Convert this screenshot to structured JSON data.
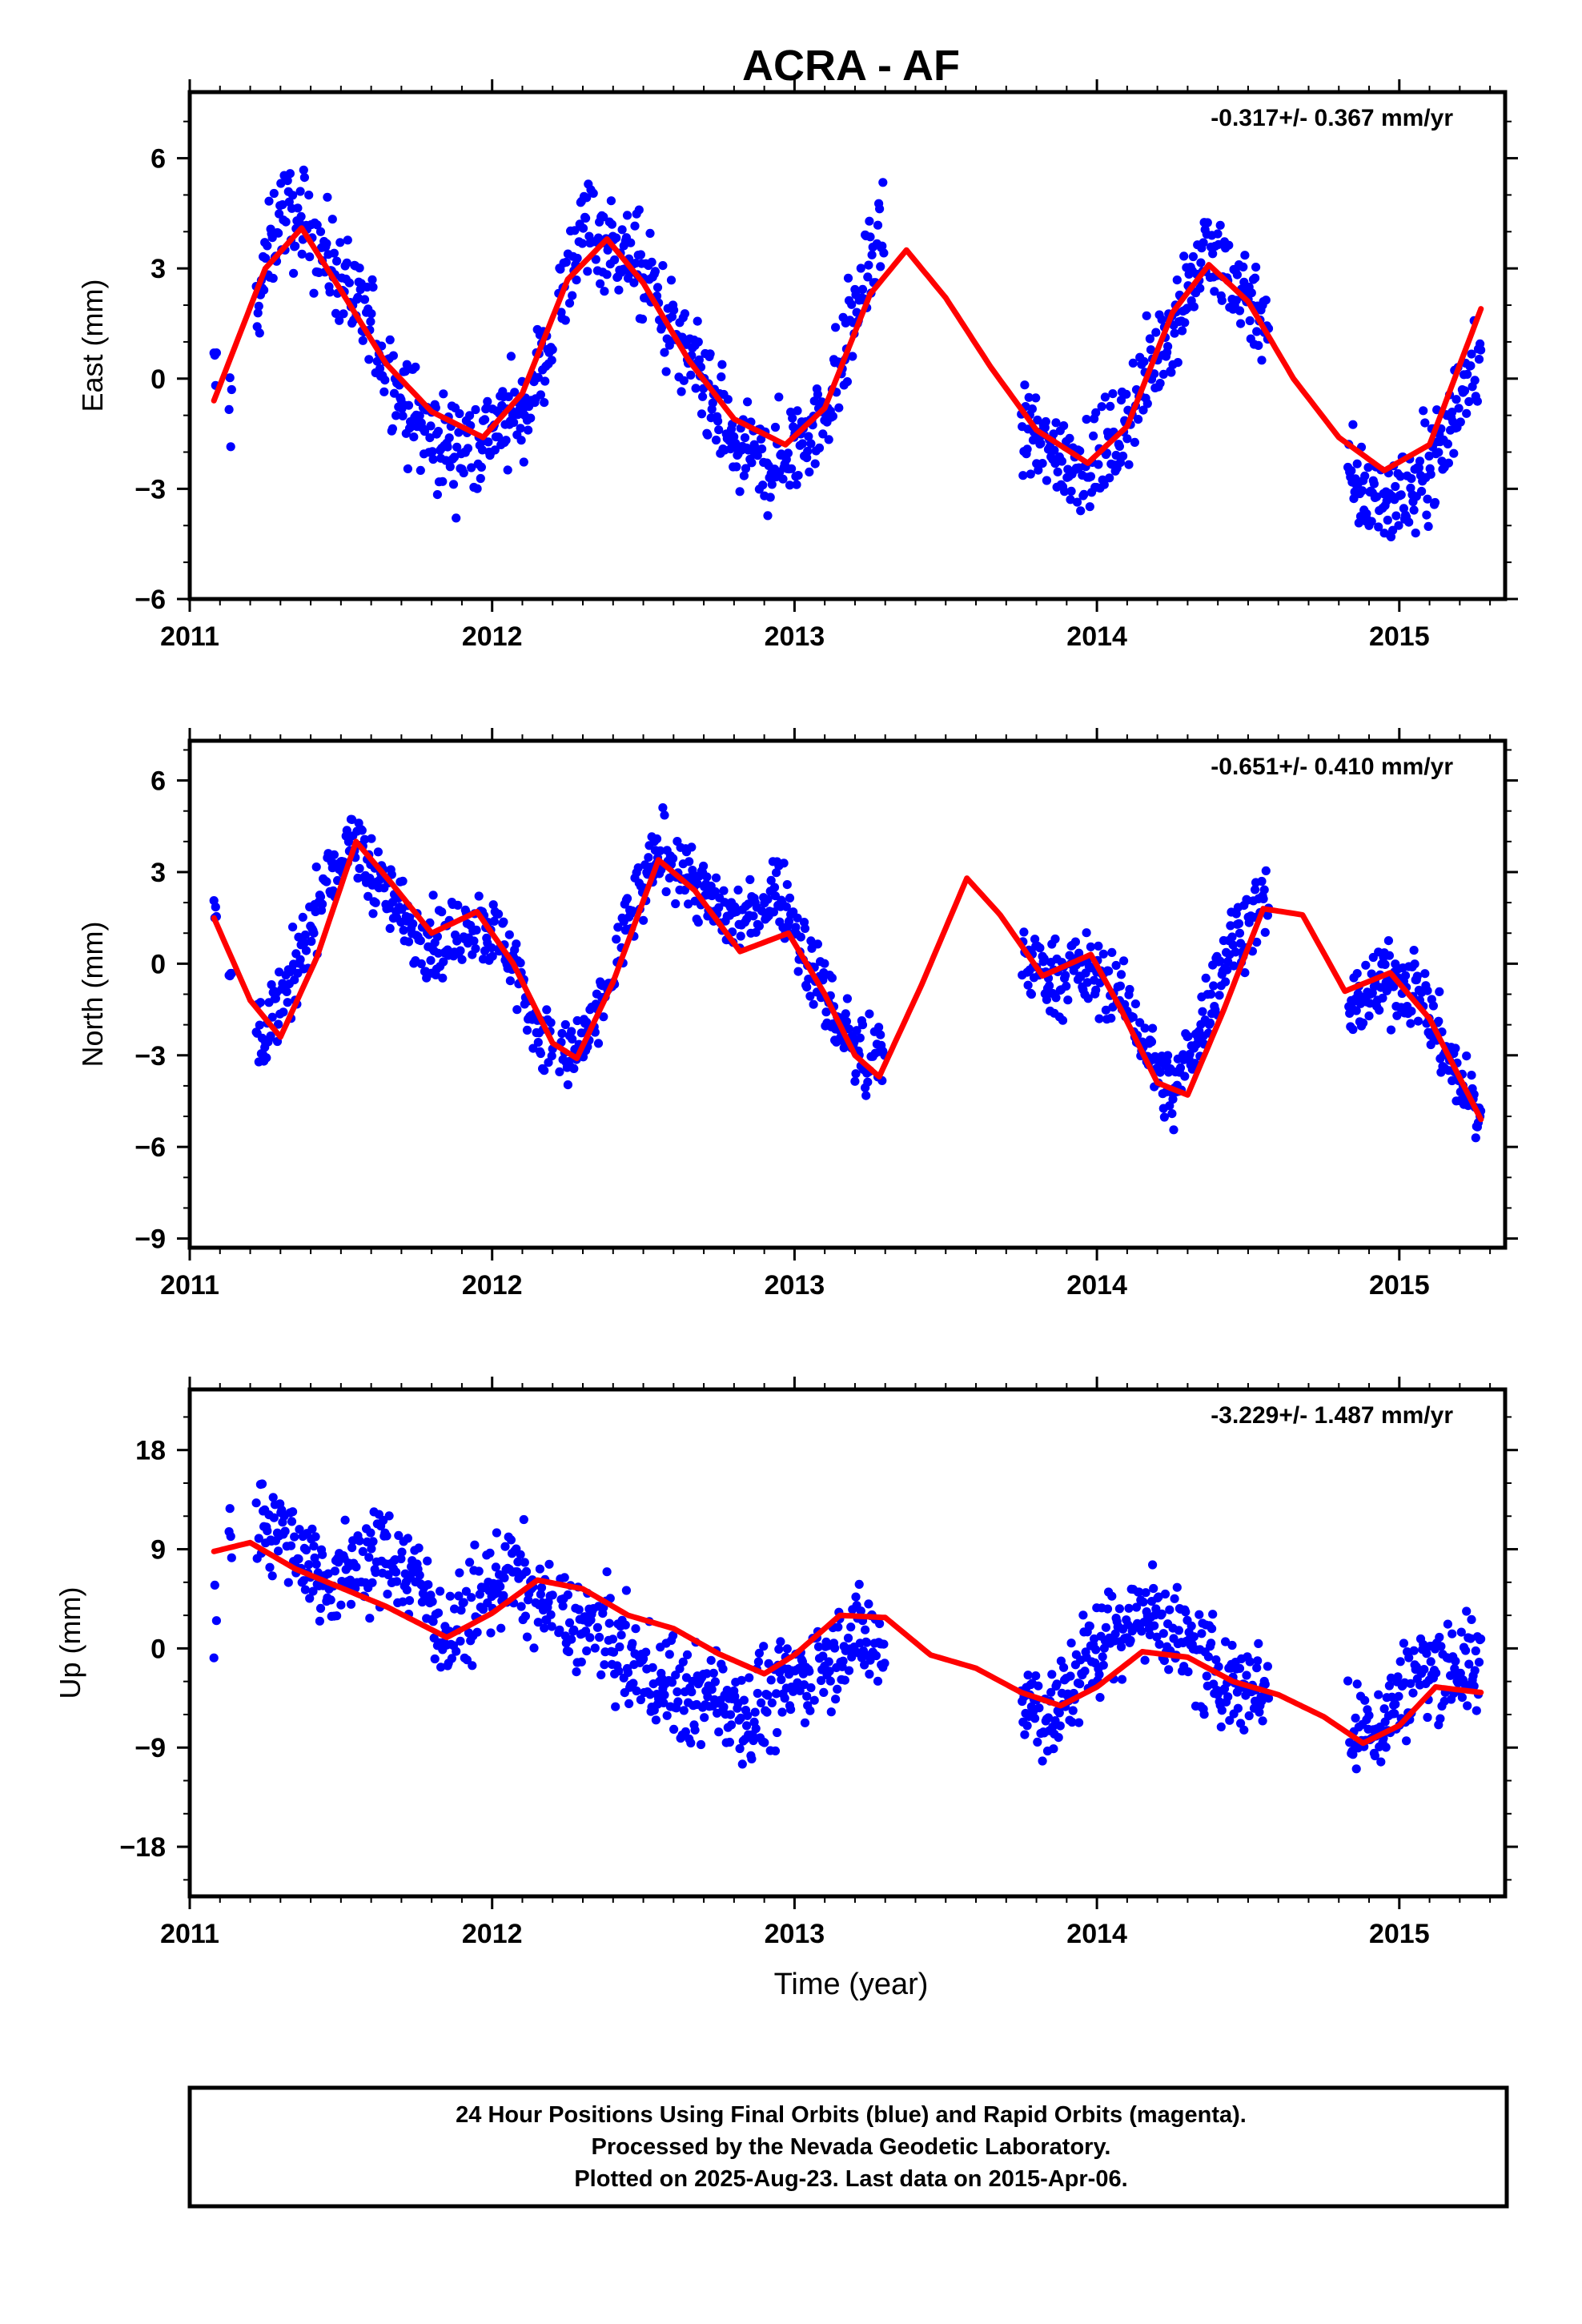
{
  "figure": {
    "title": "ACRA - AF",
    "xlabel": "Time (year)",
    "footer": [
      "24 Hour Positions Using Final Orbits (blue) and Rapid Orbits (magenta).",
      "Processed by the Nevada Geodetic Laboratory.",
      "Plotted on 2025-Aug-23. Last data on 2015-Apr-06."
    ]
  },
  "colors": {
    "points": "#0000ff",
    "fit": "#ff0000",
    "frame": "#000000"
  },
  "chart_data": [
    {
      "type": "scatter",
      "panel": "east",
      "ylabel": "East (mm)",
      "rate_label": "-0.317+/- 0.367 mm/yr",
      "xlim": [
        2011.0,
        2015.35
      ],
      "ylim": [
        -6,
        7.8
      ],
      "xticks": [
        2011,
        2012,
        2013,
        2014,
        2015
      ],
      "xtick_labels": [
        "2011",
        "2012",
        "2013",
        "2014",
        "2015"
      ],
      "yticks": [
        -6,
        -3,
        0,
        3,
        6
      ],
      "ytick_labels": [
        "−6",
        "−3",
        "0",
        "3",
        "6"
      ],
      "series": [
        {
          "kind": "points",
          "segments": [
            [
              2011.08,
              2011.09
            ],
            [
              2011.13,
              2011.14
            ],
            [
              2011.22,
              2012.2
            ],
            [
              2012.22,
              2013.3
            ],
            [
              2013.75,
              2014.57
            ],
            [
              2014.83,
              2015.27
            ]
          ],
          "x": [
            2011.08,
            2011.14,
            2011.3,
            2011.4,
            2011.5,
            2011.6,
            2011.7,
            2011.8,
            2011.9,
            2012.0,
            2012.1,
            2012.2,
            2012.3,
            2012.4,
            2012.5,
            2012.6,
            2012.7,
            2012.8,
            2012.9,
            2013.0,
            2013.1,
            2013.2,
            2013.3,
            2013.75,
            2013.85,
            2013.95,
            2014.05,
            2014.15,
            2014.25,
            2014.35,
            2014.45,
            2014.55,
            2014.85,
            2014.95,
            2015.05,
            2015.15,
            2015.25
          ],
          "y": [
            0.0,
            -0.8,
            4.6,
            4.0,
            2.8,
            1.2,
            -0.5,
            -1.6,
            -1.9,
            -1.4,
            -1.0,
            1.2,
            4.3,
            3.6,
            2.9,
            1.2,
            -0.4,
            -1.9,
            -2.4,
            -1.9,
            -0.9,
            1.8,
            4.2,
            -1.4,
            -2.0,
            -2.3,
            -1.9,
            -0.3,
            1.6,
            3.3,
            2.8,
            1.8,
            -3.0,
            -3.3,
            -3.0,
            -1.6,
            0.7
          ],
          "noise": 1.2
        },
        {
          "kind": "line",
          "x": [
            2011.08,
            2011.25,
            2011.37,
            2011.5,
            2011.65,
            2011.8,
            2011.97,
            2012.1,
            2012.25,
            2012.38,
            2012.5,
            2012.65,
            2012.8,
            2012.97,
            2013.1,
            2013.25,
            2013.37,
            2013.5,
            2013.65,
            2013.8,
            2013.97,
            2014.1,
            2014.25,
            2014.37,
            2014.5,
            2014.65,
            2014.8,
            2014.95,
            2015.1,
            2015.27
          ],
          "y": [
            -0.6,
            3.0,
            4.1,
            2.4,
            0.4,
            -0.9,
            -1.6,
            -0.4,
            2.7,
            3.8,
            2.6,
            0.5,
            -1.1,
            -1.8,
            -0.8,
            2.3,
            3.5,
            2.2,
            0.3,
            -1.4,
            -2.3,
            -1.3,
            1.8,
            3.1,
            2.1,
            0.0,
            -1.6,
            -2.5,
            -1.8,
            1.9
          ]
        }
      ]
    },
    {
      "type": "scatter",
      "panel": "north",
      "ylabel": "North (mm)",
      "rate_label": "-0.651+/- 0.410 mm/yr",
      "xlim": [
        2011.0,
        2015.35
      ],
      "ylim": [
        -9.3,
        7.3
      ],
      "xticks": [
        2011,
        2012,
        2013,
        2014,
        2015
      ],
      "xtick_labels": [
        "2011",
        "2012",
        "2013",
        "2014",
        "2015"
      ],
      "yticks": [
        -9,
        -6,
        -3,
        0,
        3,
        6
      ],
      "ytick_labels": [
        "−9",
        "−6",
        "−3",
        "0",
        "3",
        "6"
      ],
      "series": [
        {
          "kind": "points",
          "segments": [
            [
              2011.08,
              2011.09
            ],
            [
              2011.13,
              2011.14
            ],
            [
              2011.22,
              2012.2
            ],
            [
              2012.22,
              2013.3
            ],
            [
              2013.75,
              2014.57
            ],
            [
              2014.83,
              2015.27
            ]
          ],
          "x": [
            2011.08,
            2011.14,
            2011.25,
            2011.35,
            2011.45,
            2011.55,
            2011.65,
            2011.75,
            2011.85,
            2011.95,
            2012.05,
            2012.15,
            2012.25,
            2012.35,
            2012.45,
            2012.55,
            2012.65,
            2012.75,
            2012.85,
            2012.95,
            2013.05,
            2013.15,
            2013.25,
            2013.75,
            2013.85,
            2013.95,
            2014.05,
            2014.15,
            2014.25,
            2014.35,
            2014.45,
            2014.55,
            2014.85,
            2014.95,
            2015.05,
            2015.15,
            2015.25
          ],
          "y": [
            1.5,
            -0.6,
            -2.2,
            -0.4,
            2.8,
            3.9,
            2.3,
            1.0,
            0.6,
            1.4,
            0.6,
            -2.2,
            -3.3,
            -1.8,
            1.3,
            3.6,
            3.0,
            1.6,
            1.4,
            2.6,
            0.0,
            -2.0,
            -3.4,
            0.2,
            -0.4,
            -0.2,
            -0.6,
            -2.4,
            -4.4,
            -1.8,
            0.9,
            2.0,
            -1.4,
            -0.5,
            -0.7,
            -2.8,
            -4.8
          ],
          "noise": 1.1
        },
        {
          "kind": "line",
          "x": [
            2011.08,
            2011.2,
            2011.3,
            2011.42,
            2011.55,
            2011.67,
            2011.8,
            2011.95,
            2012.07,
            2012.2,
            2012.28,
            2012.4,
            2012.55,
            2012.67,
            2012.82,
            2012.98,
            2013.1,
            2013.2,
            2013.28,
            2013.42,
            2013.57,
            2013.68,
            2013.82,
            2013.98,
            2014.08,
            2014.2,
            2014.3,
            2014.42,
            2014.55,
            2014.68,
            2014.82,
            2014.97,
            2015.1,
            2015.27
          ],
          "y": [
            1.5,
            -1.2,
            -2.4,
            0.2,
            4.0,
            2.6,
            1.0,
            1.7,
            0.0,
            -2.6,
            -3.1,
            -0.6,
            3.4,
            2.4,
            0.4,
            1.0,
            -1.0,
            -3.0,
            -3.7,
            -0.7,
            2.8,
            1.6,
            -0.4,
            0.3,
            -1.5,
            -3.9,
            -4.3,
            -1.5,
            1.8,
            1.6,
            -0.9,
            -0.3,
            -1.8,
            -5.1
          ]
        }
      ]
    },
    {
      "type": "scatter",
      "panel": "up",
      "ylabel": "Up (mm)",
      "rate_label": "-3.229+/- 1.487 mm/yr",
      "xlim": [
        2011.0,
        2015.35
      ],
      "ylim": [
        -22.5,
        23.5
      ],
      "xticks": [
        2011,
        2012,
        2013,
        2014,
        2015
      ],
      "xtick_labels": [
        "2011",
        "2012",
        "2013",
        "2014",
        "2015"
      ],
      "yticks": [
        -18,
        -9,
        0,
        9,
        18
      ],
      "ytick_labels": [
        "−18",
        "−9",
        "0",
        "9",
        "18"
      ],
      "series": [
        {
          "kind": "points",
          "segments": [
            [
              2011.08,
              2011.09
            ],
            [
              2011.13,
              2011.14
            ],
            [
              2011.22,
              2012.2
            ],
            [
              2012.22,
              2013.3
            ],
            [
              2013.75,
              2014.57
            ],
            [
              2014.83,
              2015.27
            ]
          ],
          "x": [
            2011.08,
            2011.14,
            2011.25,
            2011.35,
            2011.45,
            2011.55,
            2011.65,
            2011.75,
            2011.85,
            2011.95,
            2012.05,
            2012.15,
            2012.25,
            2012.35,
            2012.45,
            2012.55,
            2012.65,
            2012.75,
            2012.85,
            2012.95,
            2013.05,
            2013.15,
            2013.25,
            2013.75,
            2013.85,
            2013.95,
            2014.05,
            2014.15,
            2014.25,
            2014.35,
            2014.45,
            2014.55,
            2014.85,
            2014.95,
            2015.05,
            2015.15,
            2015.25
          ],
          "y": [
            0.6,
            10.8,
            12.0,
            9.5,
            6.0,
            7.5,
            8.5,
            6.8,
            1.0,
            3.5,
            7.5,
            4.5,
            2.5,
            1.5,
            -1.5,
            -3.0,
            -4.5,
            -4.0,
            -6.0,
            -4.0,
            -2.0,
            0.5,
            1.0,
            -4.0,
            -6.5,
            -1.5,
            1.5,
            3.5,
            2.0,
            -1.5,
            -3.0,
            -3.5,
            -8.0,
            -6.5,
            -2.5,
            -1.0,
            -2.0
          ],
          "noise": 4.0
        },
        {
          "kind": "line",
          "x": [
            2011.08,
            2011.2,
            2011.35,
            2011.5,
            2011.65,
            2011.85,
            2012.0,
            2012.15,
            2012.3,
            2012.45,
            2012.6,
            2012.75,
            2012.9,
            2013.0,
            2013.15,
            2013.3,
            2013.45,
            2013.6,
            2013.75,
            2013.88,
            2014.0,
            2014.15,
            2014.3,
            2014.45,
            2014.6,
            2014.75,
            2014.88,
            2015.0,
            2015.12,
            2015.27
          ],
          "y": [
            8.8,
            9.6,
            7.2,
            5.5,
            3.8,
            1.0,
            3.2,
            6.2,
            5.4,
            3.0,
            1.8,
            -0.5,
            -2.3,
            -0.6,
            3.0,
            2.8,
            -0.6,
            -1.8,
            -4.0,
            -5.2,
            -3.5,
            -0.3,
            -0.8,
            -3.0,
            -4.2,
            -6.2,
            -8.6,
            -7.0,
            -3.5,
            -4.0
          ]
        }
      ]
    }
  ]
}
